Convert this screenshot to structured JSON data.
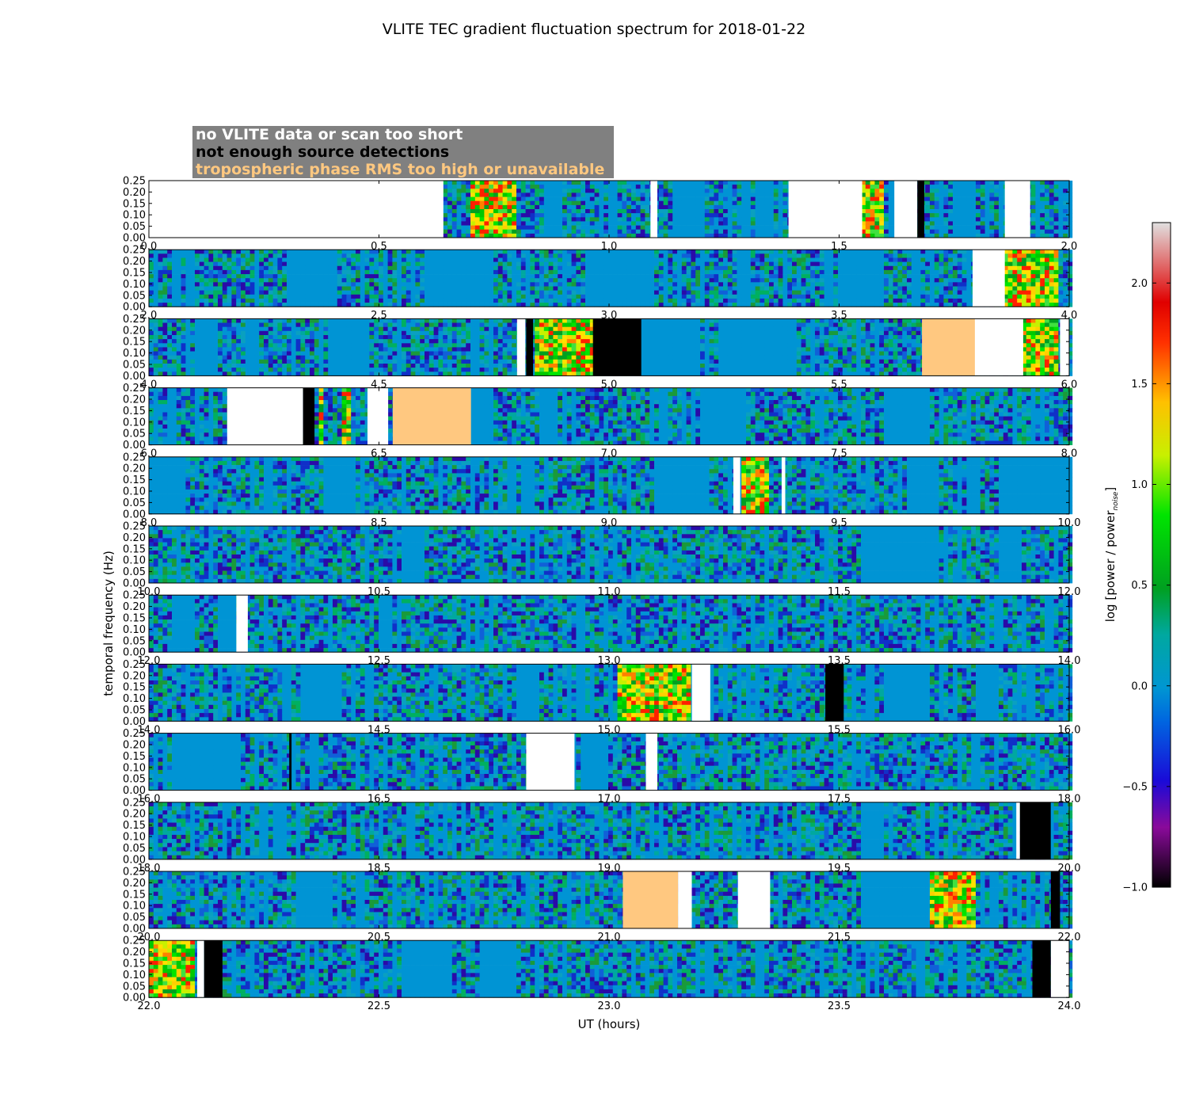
{
  "chart_data": {
    "type": "heatmap",
    "title": "VLITE TEC gradient fluctuation spectrum for 2018-01-22",
    "xlabel": "UT (hours)",
    "ylabel": "temporal frequency (Hz)",
    "ylim": [
      0,
      0.25
    ],
    "y_ticks": [
      "0.00",
      "0.05",
      "0.10",
      "0.15",
      "0.20",
      "0.25"
    ],
    "colorbar": {
      "label_main": "log [power / power",
      "label_sub": "noise",
      "label_end": "]",
      "range": [
        -1.0,
        2.3
      ],
      "ticks": [
        {
          "value": -1.0,
          "label": "−1.0"
        },
        {
          "value": -0.5,
          "label": "−0.5"
        },
        {
          "value": 0.0,
          "label": "0.0"
        },
        {
          "value": 0.5,
          "label": "0.5"
        },
        {
          "value": 1.0,
          "label": "1.0"
        },
        {
          "value": 1.5,
          "label": "1.5"
        },
        {
          "value": 2.0,
          "label": "2.0"
        }
      ]
    },
    "legend": {
      "placement": "top-left",
      "background": "#808080",
      "entries": [
        {
          "label": "no VLITE data or scan too short",
          "color": "#ffffff"
        },
        {
          "label": "not enough source detections",
          "color": "#000000"
        },
        {
          "label": "tropospheric phase RMS too high or unavailable",
          "color": "#ffc880"
        }
      ]
    },
    "panels": [
      {
        "xlim": [
          0.0,
          2.0
        ],
        "x_ticks": [
          "0.0",
          "0.5",
          "1.0",
          "1.5",
          "2.0"
        ],
        "nodata": [
          [
            0.0,
            0.64
          ],
          [
            1.09,
            1.105
          ],
          [
            1.39,
            1.55
          ],
          [
            1.62,
            1.67
          ],
          [
            1.86,
            1.915
          ]
        ],
        "nodetect": [
          [
            1.67,
            1.685
          ]
        ],
        "trop": [],
        "quiet": [
          [
            1.14,
            1.2
          ],
          [
            1.32,
            1.36
          ],
          [
            1.75,
            1.8
          ]
        ],
        "hot": [
          [
            0.7,
            0.8
          ],
          [
            1.55,
            1.6
          ]
        ]
      },
      {
        "xlim": [
          2.0,
          4.0
        ],
        "x_ticks": [
          "2.0",
          "2.5",
          "3.0",
          "3.5",
          "4.0"
        ],
        "nodata": [
          [
            3.79,
            3.86
          ]
        ],
        "nodetect": [],
        "trop": [],
        "quiet": [
          [
            2.3,
            2.4
          ],
          [
            2.6,
            2.75
          ],
          [
            2.95,
            3.1
          ],
          [
            3.5,
            3.6
          ]
        ],
        "hot": [
          [
            3.86,
            3.98
          ]
        ]
      },
      {
        "xlim": [
          4.0,
          6.0
        ],
        "x_ticks": [
          "4.0",
          "4.5",
          "5.0",
          "5.5",
          "6.0"
        ],
        "nodata": [
          [
            4.8,
            4.818
          ],
          [
            5.79,
            5.9
          ],
          [
            5.98,
            6.0
          ]
        ],
        "nodetect": [
          [
            4.82,
            4.835
          ],
          [
            4.965,
            5.07
          ]
        ],
        "trop": [
          [
            5.68,
            5.795
          ]
        ],
        "quiet": [
          [
            4.1,
            4.15
          ],
          [
            4.4,
            4.48
          ],
          [
            5.07,
            5.2
          ],
          [
            5.25,
            5.4
          ]
        ],
        "hot": [
          [
            4.84,
            4.965
          ],
          [
            5.9,
            5.98
          ]
        ]
      },
      {
        "xlim": [
          6.0,
          8.0
        ],
        "x_ticks": [
          "6.0",
          "6.5",
          "7.0",
          "7.5",
          "8.0"
        ],
        "nodata": [
          [
            6.17,
            6.335
          ],
          [
            6.475,
            6.52
          ]
        ],
        "nodetect": [
          [
            6.335,
            6.36
          ]
        ],
        "trop": [
          [
            6.53,
            6.7
          ]
        ],
        "quiet": [
          [
            6.7,
            6.75
          ],
          [
            7.2,
            7.3
          ],
          [
            7.6,
            7.7
          ]
        ],
        "hot": [
          [
            6.365,
            6.38
          ],
          [
            6.42,
            6.44
          ]
        ]
      },
      {
        "xlim": [
          8.0,
          10.0
        ],
        "x_ticks": [
          "8.0",
          "8.5",
          "9.0",
          "9.5",
          "10.0"
        ],
        "nodata": [
          [
            9.27,
            9.285
          ],
          [
            9.375,
            9.383
          ]
        ],
        "nodetect": [],
        "trop": [],
        "quiet": [
          [
            8.0,
            8.08
          ],
          [
            8.38,
            8.45
          ],
          [
            9.1,
            9.2
          ],
          [
            9.65,
            9.72
          ],
          [
            9.85,
            10.0
          ]
        ],
        "hot": [
          [
            9.29,
            9.35
          ]
        ]
      },
      {
        "xlim": [
          10.0,
          12.0
        ],
        "x_ticks": [
          "10.0",
          "10.5",
          "11.0",
          "11.5",
          "12.0"
        ],
        "nodata": [],
        "nodetect": [],
        "trop": [],
        "quiet": [
          [
            10.55,
            10.6
          ],
          [
            11.55,
            11.72
          ],
          [
            11.85,
            11.9
          ]
        ],
        "hot": []
      },
      {
        "xlim": [
          12.0,
          14.0
        ],
        "x_ticks": [
          "12.0",
          "12.5",
          "13.0",
          "13.5",
          "14.0"
        ],
        "nodata": [
          [
            12.19,
            12.215
          ]
        ],
        "nodetect": [],
        "trop": [],
        "quiet": [
          [
            12.05,
            12.1
          ],
          [
            12.15,
            12.19
          ]
        ],
        "hot": []
      },
      {
        "xlim": [
          14.0,
          16.0
        ],
        "x_ticks": [
          "14.0",
          "14.5",
          "15.0",
          "15.5",
          "16.0"
        ],
        "nodata": [
          [
            15.18,
            15.22
          ]
        ],
        "nodetect": [
          [
            15.47,
            15.51
          ]
        ],
        "trop": [],
        "quiet": [
          [
            14.33,
            14.42
          ],
          [
            14.8,
            14.85
          ],
          [
            15.6,
            15.7
          ],
          [
            15.8,
            15.85
          ]
        ],
        "hot": [
          [
            15.02,
            15.1
          ],
          [
            15.1,
            15.18
          ]
        ]
      },
      {
        "xlim": [
          16.0,
          18.0
        ],
        "x_ticks": [
          "16.0",
          "16.5",
          "17.0",
          "17.5",
          "18.0"
        ],
        "nodata": [
          [
            16.82,
            16.925
          ],
          [
            17.08,
            17.105
          ]
        ],
        "nodetect": [
          [
            16.305,
            16.31
          ]
        ],
        "trop": [],
        "quiet": [
          [
            16.05,
            16.2
          ],
          [
            16.95,
            17.0
          ]
        ],
        "hot": []
      },
      {
        "xlim": [
          18.0,
          20.0
        ],
        "x_ticks": [
          "18.0",
          "18.5",
          "19.0",
          "19.5",
          "20.0"
        ],
        "nodata": [
          [
            19.885,
            19.893
          ]
        ],
        "nodetect": [
          [
            19.893,
            19.96
          ]
        ],
        "trop": [],
        "quiet": [
          [
            19.55,
            19.6
          ]
        ],
        "hot": []
      },
      {
        "xlim": [
          20.0,
          22.0
        ],
        "x_ticks": [
          "20.0",
          "20.5",
          "21.0",
          "21.5",
          "22.0"
        ],
        "nodata": [
          [
            21.15,
            21.18
          ],
          [
            21.28,
            21.35
          ]
        ],
        "nodetect": [
          [
            21.96,
            21.98
          ]
        ],
        "trop": [
          [
            21.03,
            21.15
          ]
        ],
        "quiet": [
          [
            20.33,
            20.4
          ],
          [
            21.55,
            21.7
          ]
        ],
        "hot": [
          [
            21.7,
            21.8
          ]
        ]
      },
      {
        "xlim": [
          22.0,
          24.0
        ],
        "x_ticks": [
          "22.0",
          "22.5",
          "23.0",
          "23.5",
          "24.0"
        ],
        "nodata": [
          [
            22.105,
            22.12
          ],
          [
            23.96,
            24.0
          ]
        ],
        "nodetect": [
          [
            22.12,
            22.16
          ],
          [
            23.92,
            23.96
          ]
        ],
        "trop": [],
        "quiet": [
          [
            22.55,
            22.65
          ],
          [
            22.72,
            22.8
          ]
        ],
        "hot": [
          [
            22.0,
            22.1
          ]
        ]
      }
    ]
  }
}
